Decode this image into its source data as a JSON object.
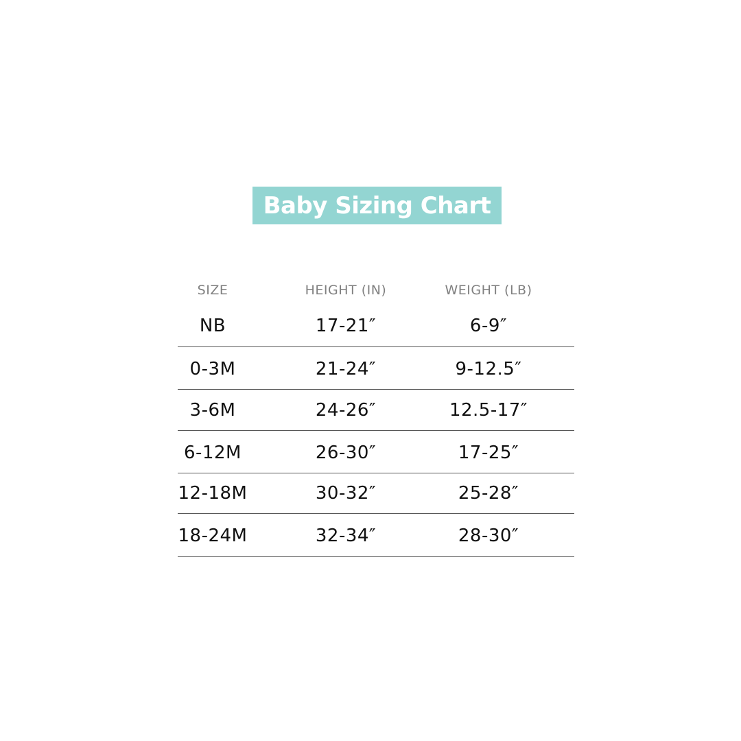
{
  "title": "Baby Sizing Chart",
  "colors": {
    "banner": "#93d5d2",
    "header_text": "#808080",
    "body_text": "#111111"
  },
  "table": {
    "headers": [
      "SIZE",
      "HEIGHT (IN)",
      "WEIGHT (LB)"
    ],
    "rows": [
      [
        "NB",
        "17-21″",
        "6-9″"
      ],
      [
        "0-3M",
        "21-24″",
        "9-12.5″"
      ],
      [
        "3-6M",
        "24-26″",
        "12.5-17″"
      ],
      [
        "6-12M",
        "26-30″",
        "17-25″"
      ],
      [
        "12-18M",
        "30-32″",
        "25-28″"
      ],
      [
        "18-24M",
        "32-34″",
        "28-30″"
      ]
    ]
  }
}
